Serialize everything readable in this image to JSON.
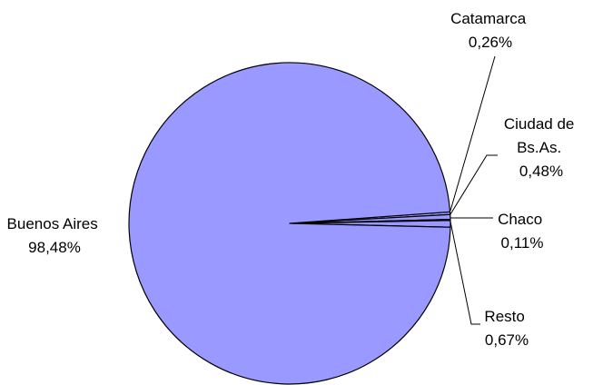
{
  "chart_data": {
    "type": "pie",
    "slices": [
      {
        "name": "Buenos Aires",
        "value": 98.48,
        "label": "98,48%"
      },
      {
        "name": "Catamarca",
        "value": 0.26,
        "label": "0,26%"
      },
      {
        "name": "Ciudad de Bs.As.",
        "value": 0.48,
        "label": "0,48%"
      },
      {
        "name": "Chaco",
        "value": 0.11,
        "label": "0,11%"
      },
      {
        "name": "Resto",
        "value": 0.67,
        "label": "0,67%"
      }
    ],
    "labels": {
      "buenos_aires": [
        "Buenos Aires",
        "98,48%"
      ],
      "catamarca": [
        "Catamarca",
        "0,26%"
      ],
      "ciudad": [
        "Ciudad de",
        "Bs.As.",
        "0,48%"
      ],
      "chaco": [
        "Chaco",
        "0,11%"
      ],
      "resto": [
        "Resto",
        "0,67%"
      ]
    },
    "colors": {
      "fill": "#9999FF",
      "stroke": "#000000"
    },
    "legend": "none"
  }
}
